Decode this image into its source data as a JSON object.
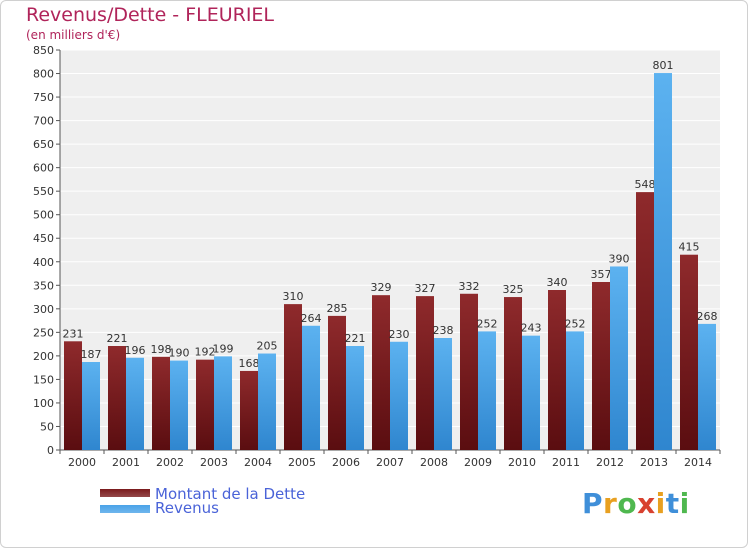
{
  "chart_data": {
    "type": "bar",
    "title": "Revenus/Dette - FLEURIEL",
    "subtitle": "(en milliers d'€)",
    "categories": [
      "2000",
      "2001",
      "2002",
      "2003",
      "2004",
      "2005",
      "2006",
      "2007",
      "2008",
      "2009",
      "2010",
      "2011",
      "2012",
      "2013",
      "2014"
    ],
    "series": [
      {
        "name": "Montant de la Dette",
        "color": "#7a1a1c",
        "values": [
          231,
          221,
          198,
          192,
          168,
          310,
          285,
          329,
          327,
          332,
          325,
          340,
          357,
          548,
          415
        ]
      },
      {
        "name": "Revenus",
        "color": "#4aa3e8",
        "values": [
          187,
          196,
          190,
          199,
          205,
          264,
          221,
          230,
          238,
          252,
          243,
          252,
          390,
          801,
          268
        ]
      }
    ],
    "ylim": [
      0,
      850
    ],
    "yticks": [
      0,
      50,
      100,
      150,
      200,
      250,
      300,
      350,
      400,
      450,
      500,
      550,
      600,
      650,
      700,
      750,
      800,
      850
    ],
    "grid": true,
    "legend": "bottom-left"
  },
  "legend": {
    "items": [
      {
        "label": "Montant de la Dette",
        "color": "#7a1a1c"
      },
      {
        "label": "Revenus",
        "color": "#4aa3e8"
      }
    ]
  },
  "logo": {
    "letters": [
      "P",
      "r",
      "o",
      "x",
      "i",
      "t",
      "i"
    ],
    "colors": [
      "#3f8fd9",
      "#e8a020",
      "#4fb84f",
      "#d8412f",
      "#e8a020",
      "#3f8fd9",
      "#4fb84f"
    ]
  }
}
